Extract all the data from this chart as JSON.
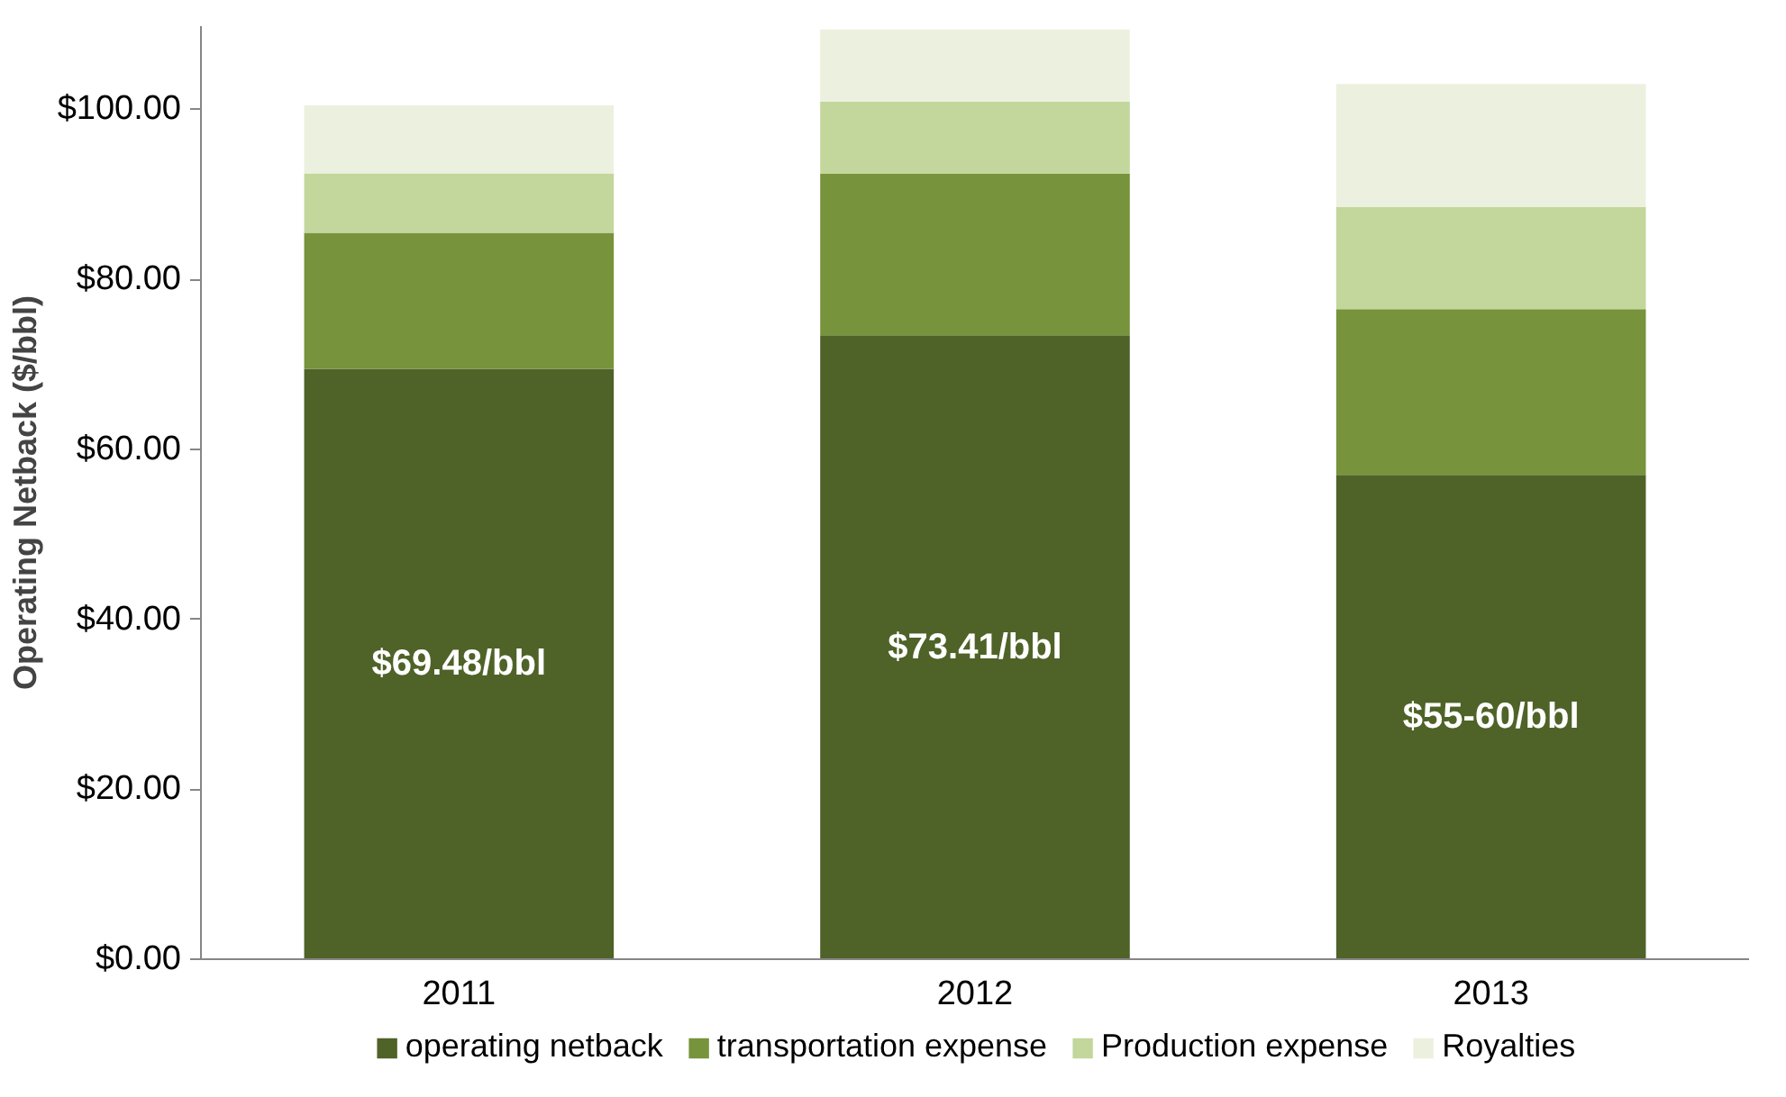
{
  "chart_data": {
    "type": "bar",
    "stacked": true,
    "ylabel": "Operating Netback ($/bbl)",
    "categories": [
      "2011",
      "2012",
      "2013"
    ],
    "ylim": [
      0,
      109.8
    ],
    "yticks": [
      {
        "value": 0,
        "label": "$0.00"
      },
      {
        "value": 20,
        "label": "$20.00"
      },
      {
        "value": 40,
        "label": "$40.00"
      },
      {
        "value": 60,
        "label": "$60.00"
      },
      {
        "value": 80,
        "label": "$80.00"
      },
      {
        "value": 100,
        "label": "$100.00"
      }
    ],
    "grid": false,
    "legend": "bottom",
    "series": [
      {
        "name": "operating netback",
        "color": "#4f6228",
        "values": [
          69.48,
          73.41,
          57
        ],
        "value_labels": [
          "$69.48/bbl",
          "$73.41/bbl",
          "$55-60/bbl"
        ]
      },
      {
        "name": "transportation expense",
        "color": "#77933c",
        "values": [
          16,
          19,
          19.5
        ]
      },
      {
        "name": "Production expense",
        "color": "#c3d69b",
        "values": [
          7,
          8.5,
          12
        ]
      },
      {
        "name": "Royalties",
        "color": "#ebf1de",
        "values": [
          8,
          8.5,
          14.5
        ]
      }
    ]
  }
}
